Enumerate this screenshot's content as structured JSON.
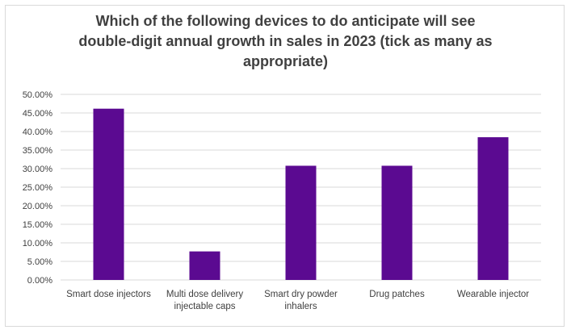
{
  "chart_data": {
    "type": "bar",
    "title": "Which of the following devices to do anticipate will see\ndouble-digit annual growth in sales in 2023 (tick as many as\nappropriate)",
    "xlabel": "",
    "ylabel": "",
    "categories": [
      [
        "Smart dose injectors"
      ],
      [
        "Multi dose delivery",
        "injectable caps"
      ],
      [
        "Smart dry powder",
        "inhalers"
      ],
      [
        "Drug patches"
      ],
      [
        "Wearable injector"
      ]
    ],
    "values": [
      46.15,
      7.69,
      30.77,
      30.77,
      38.46
    ],
    "ylim": [
      0,
      50
    ],
    "yticks": [
      "0.00%",
      "5.00%",
      "10.00%",
      "15.00%",
      "20.00%",
      "25.00%",
      "30.00%",
      "35.00%",
      "40.00%",
      "45.00%",
      "50.00%"
    ],
    "grid": true,
    "legend": "none",
    "bar_color": "#5b0a91",
    "grid_color": "#d9d9d9"
  }
}
